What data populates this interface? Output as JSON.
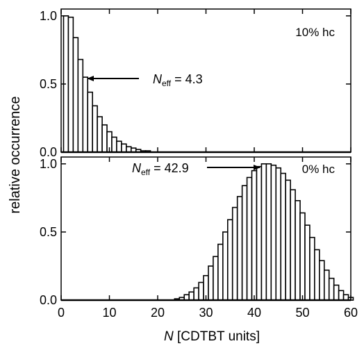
{
  "chart_data": [
    {
      "type": "bar",
      "panel": "top",
      "panel_label": "10% hc",
      "xlim": [
        0,
        60
      ],
      "ylim": [
        0,
        1.05
      ],
      "y_ticks": [
        0,
        0.5,
        1
      ],
      "y_tick_labels": [
        "0.0",
        "0.5",
        "1.0"
      ],
      "x": [
        1,
        2,
        3,
        4,
        5,
        6,
        7,
        8,
        9,
        10,
        11,
        12,
        13,
        14,
        15,
        16,
        17,
        18,
        19,
        20,
        21,
        22,
        23,
        24,
        25,
        26,
        27,
        28,
        29,
        30,
        31,
        32,
        33,
        34,
        35,
        36,
        37,
        38,
        39,
        40,
        41,
        42,
        43,
        44,
        45,
        46,
        47,
        48,
        49,
        50,
        51,
        52,
        53,
        54,
        55,
        56,
        57,
        58,
        59,
        60
      ],
      "values": [
        1.0,
        0.99,
        0.84,
        0.68,
        0.55,
        0.44,
        0.34,
        0.26,
        0.2,
        0.15,
        0.11,
        0.08,
        0.06,
        0.04,
        0.03,
        0.02,
        0.01,
        0.01,
        0,
        0,
        0,
        0,
        0,
        0,
        0,
        0,
        0,
        0,
        0,
        0,
        0,
        0,
        0,
        0,
        0,
        0,
        0,
        0,
        0,
        0,
        0,
        0,
        0,
        0,
        0,
        0,
        0,
        0,
        0,
        0,
        0,
        0,
        0,
        0,
        0,
        0,
        0,
        0,
        0,
        0
      ],
      "annotation": {
        "label": "N",
        "subscript": "eff",
        "value_text": " = 4.3",
        "points_to_x": 5
      }
    },
    {
      "type": "bar",
      "panel": "bottom",
      "panel_label": "0% hc",
      "xlim": [
        0,
        60
      ],
      "ylim": [
        0,
        1.05
      ],
      "x_ticks": [
        0,
        10,
        20,
        30,
        40,
        50,
        60
      ],
      "x_tick_labels": [
        "0",
        "10",
        "20",
        "30",
        "40",
        "50",
        "60"
      ],
      "y_ticks": [
        0,
        0.5,
        1
      ],
      "y_tick_labels": [
        "0.0",
        "0.5",
        "1.0"
      ],
      "x": [
        20,
        21,
        22,
        23,
        24,
        25,
        26,
        27,
        28,
        29,
        30,
        31,
        32,
        33,
        34,
        35,
        36,
        37,
        38,
        39,
        40,
        41,
        42,
        43,
        44,
        45,
        46,
        47,
        48,
        49,
        50,
        51,
        52,
        53,
        54,
        55,
        56,
        57,
        58,
        59,
        60
      ],
      "values": [
        0,
        0,
        0,
        0,
        0.01,
        0.02,
        0.04,
        0.06,
        0.09,
        0.13,
        0.18,
        0.25,
        0.32,
        0.41,
        0.5,
        0.59,
        0.68,
        0.76,
        0.84,
        0.9,
        0.95,
        0.98,
        1.0,
        1.0,
        0.99,
        0.97,
        0.93,
        0.88,
        0.81,
        0.73,
        0.64,
        0.55,
        0.46,
        0.37,
        0.29,
        0.22,
        0.16,
        0.11,
        0.07,
        0.04,
        0.02
      ],
      "annotation": {
        "label": "N",
        "subscript": "eff",
        "value_text": " = 42.9",
        "points_to_x": 42.9
      }
    }
  ],
  "axes": {
    "ylabel": "relative occurrence",
    "xlabel_italic": "N",
    "xlabel_rest": " [CDTBT units]"
  }
}
